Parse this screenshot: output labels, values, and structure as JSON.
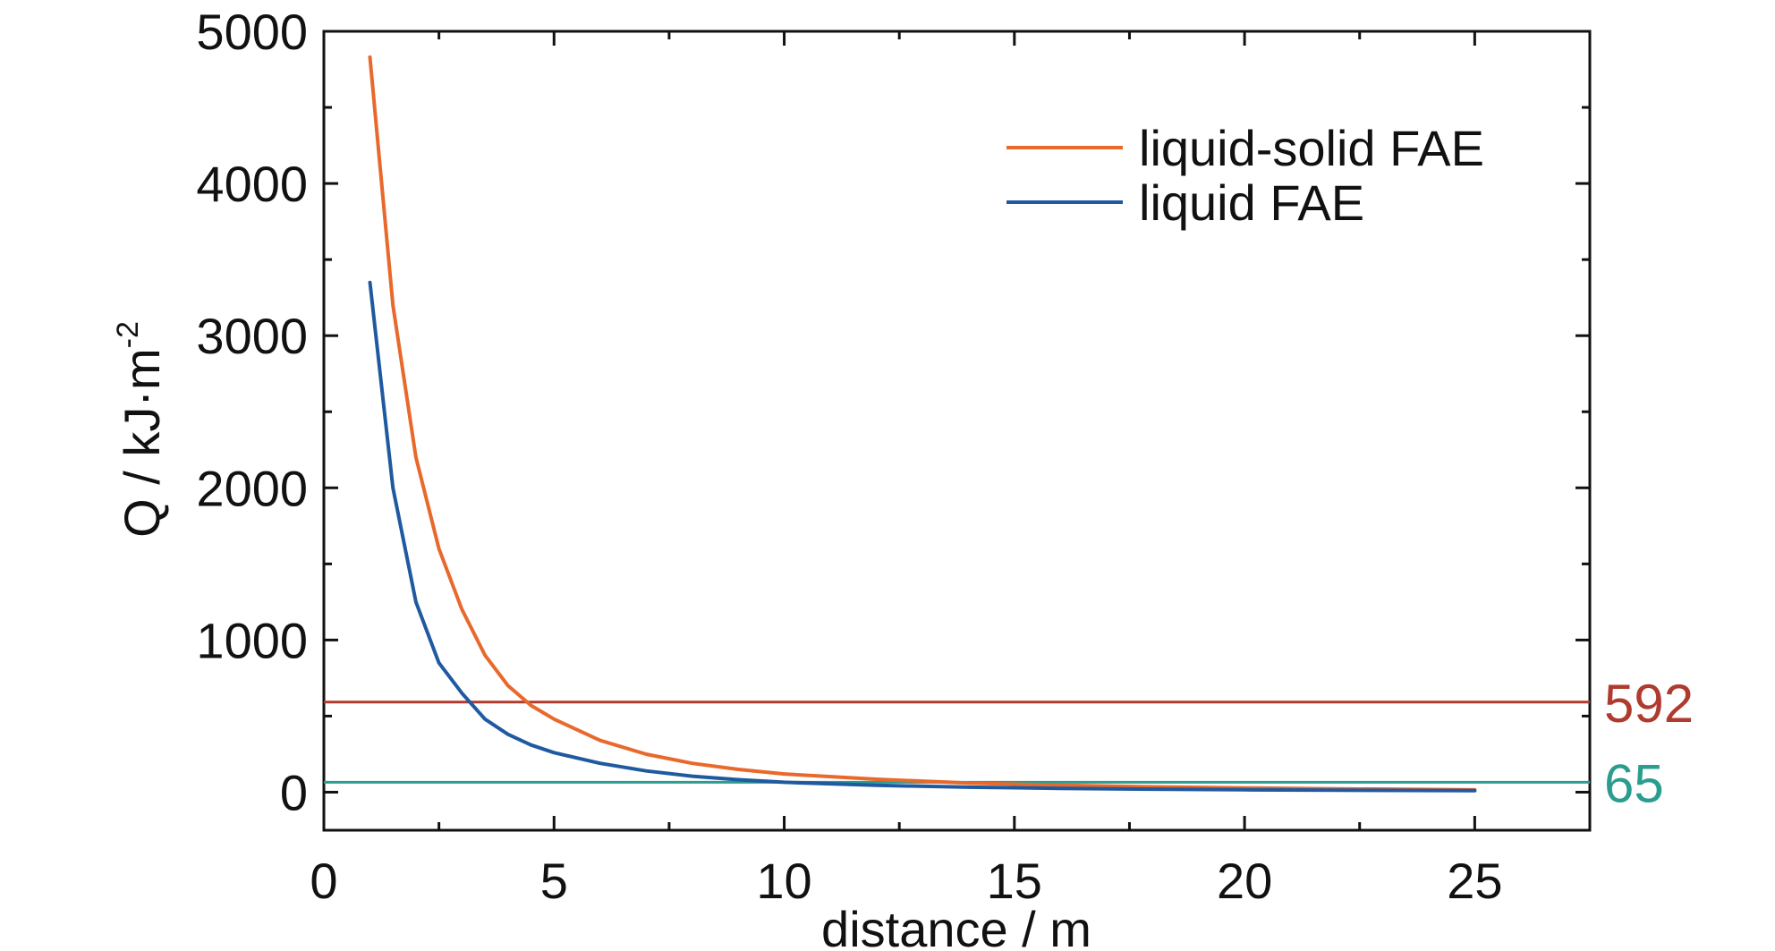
{
  "chart_data": {
    "type": "line",
    "xlabel": "distance / m",
    "ylabel": {
      "main": "Q / kJ·m",
      "superscript": "-2"
    },
    "xlim": [
      0,
      27.5
    ],
    "ylim": [
      -250,
      5000
    ],
    "xticks": [
      0,
      5,
      10,
      15,
      20,
      25
    ],
    "yticks": [
      0,
      1000,
      2000,
      3000,
      4000,
      5000
    ],
    "xtick_labels": [
      "0",
      "5",
      "10",
      "15",
      "20",
      "25"
    ],
    "ytick_labels": [
      "0",
      "1000",
      "2000",
      "3000",
      "4000",
      "5000"
    ],
    "grid": false,
    "legend_position": "top-right",
    "series": [
      {
        "name": "liquid-solid FAE",
        "color": "#e8692b",
        "x": [
          1,
          1.5,
          2,
          2.5,
          3,
          3.5,
          4,
          4.5,
          5,
          6,
          7,
          8,
          9,
          10,
          12,
          14,
          16,
          18,
          20,
          22,
          25
        ],
        "y": [
          4830,
          3200,
          2200,
          1600,
          1200,
          900,
          700,
          570,
          480,
          340,
          250,
          190,
          150,
          120,
          85,
          60,
          45,
          35,
          28,
          22,
          15
        ]
      },
      {
        "name": "liquid FAE",
        "color": "#1f5aa0",
        "x": [
          1,
          1.5,
          2,
          2.5,
          3,
          3.5,
          4,
          4.5,
          5,
          6,
          7,
          8,
          9,
          10,
          12,
          14,
          16,
          18,
          20,
          22,
          25
        ],
        "y": [
          3350,
          2000,
          1250,
          850,
          650,
          480,
          380,
          310,
          260,
          190,
          140,
          105,
          82,
          65,
          45,
          33,
          25,
          20,
          16,
          13,
          10
        ]
      }
    ],
    "reference_lines": [
      {
        "label": "592",
        "y": 592,
        "color": "#b03a2e"
      },
      {
        "label": "65",
        "y": 65,
        "color": "#2a9d8f"
      }
    ]
  }
}
